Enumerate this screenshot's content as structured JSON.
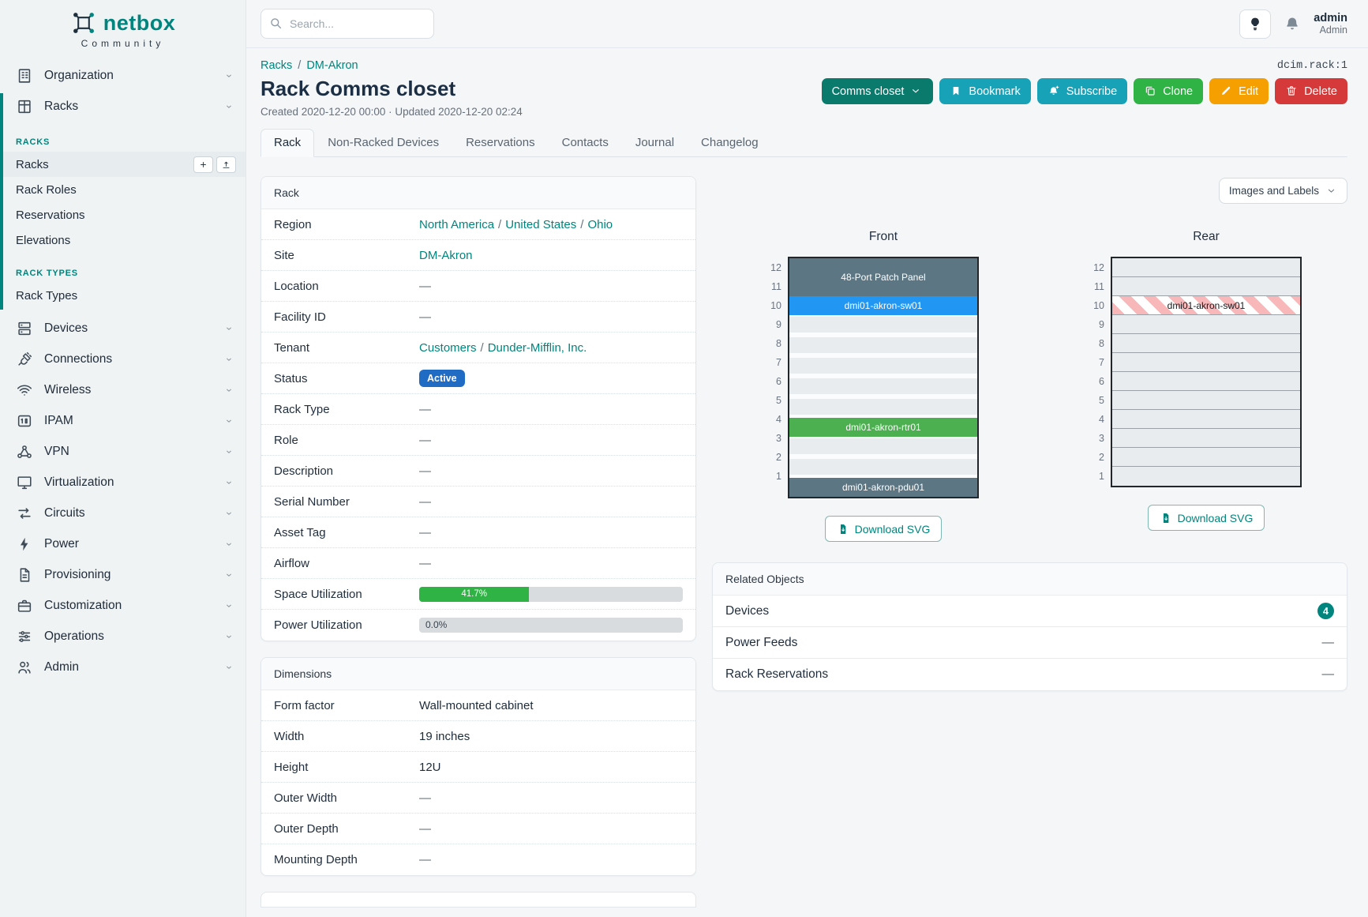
{
  "brand": {
    "name": "netbox",
    "tagline": "Community"
  },
  "topbar": {
    "search_placeholder": "Search...",
    "user_name": "admin",
    "user_role": "Admin"
  },
  "sidebar": {
    "items": [
      {
        "type": "menu",
        "label": "Organization",
        "icon": "building-icon"
      },
      {
        "type": "menu",
        "label": "Racks",
        "icon": "rack-icon",
        "expanded": true
      },
      {
        "type": "section",
        "label": "RACKS"
      },
      {
        "type": "sub",
        "label": "Racks",
        "active": true,
        "actions": [
          {
            "name": "add-rack-button",
            "icon": "plus-icon"
          },
          {
            "name": "import-racks-button",
            "icon": "upload-icon"
          }
        ]
      },
      {
        "type": "sub",
        "label": "Rack Roles"
      },
      {
        "type": "sub",
        "label": "Reservations"
      },
      {
        "type": "sub",
        "label": "Elevations"
      },
      {
        "type": "section",
        "label": "RACK TYPES"
      },
      {
        "type": "sub",
        "label": "Rack Types"
      },
      {
        "type": "menu",
        "label": "Devices",
        "icon": "devices-icon"
      },
      {
        "type": "menu",
        "label": "Connections",
        "icon": "plug-icon"
      },
      {
        "type": "menu",
        "label": "Wireless",
        "icon": "wifi-icon"
      },
      {
        "type": "menu",
        "label": "IPAM",
        "icon": "ipam-icon"
      },
      {
        "type": "menu",
        "label": "VPN",
        "icon": "network-icon"
      },
      {
        "type": "menu",
        "label": "Virtualization",
        "icon": "monitor-icon"
      },
      {
        "type": "menu",
        "label": "Circuits",
        "icon": "transfer-icon"
      },
      {
        "type": "menu",
        "label": "Power",
        "icon": "bolt-icon"
      },
      {
        "type": "menu",
        "label": "Provisioning",
        "icon": "file-icon"
      },
      {
        "type": "menu",
        "label": "Customization",
        "icon": "briefcase-icon"
      },
      {
        "type": "menu",
        "label": "Operations",
        "icon": "adjustments-icon"
      },
      {
        "type": "menu",
        "label": "Admin",
        "icon": "users-icon"
      }
    ]
  },
  "breadcrumb": {
    "items": [
      "Racks",
      "DM-Akron"
    ],
    "separator": "/"
  },
  "object_id": "dcim.rack:1",
  "header": {
    "title": "Rack Comms closet",
    "meta": "Created 2020-12-20 00:00 · Updated 2020-12-20 02:24",
    "buttons": [
      {
        "label": "Comms closet",
        "icon": "chevron-down-icon",
        "icon_after": true,
        "bg": "#0a7a6c"
      },
      {
        "label": "Bookmark",
        "icon": "bookmark-icon",
        "bg": "#17a2b8"
      },
      {
        "label": "Subscribe",
        "icon": "bell-plus-icon",
        "bg": "#17a2b8"
      },
      {
        "label": "Clone",
        "icon": "copy-icon",
        "bg": "#2fb344"
      },
      {
        "label": "Edit",
        "icon": "pencil-icon",
        "bg": "#f59f00"
      },
      {
        "label": "Delete",
        "icon": "trash-icon",
        "bg": "#d63939"
      }
    ]
  },
  "tabs": {
    "active": "Rack",
    "items": [
      "Rack",
      "Non-Racked Devices",
      "Reservations",
      "Contacts",
      "Journal",
      "Changelog"
    ]
  },
  "rack_panel": {
    "title": "Rack",
    "rows": [
      {
        "label": "Region",
        "type": "links",
        "links": [
          "North America",
          "United States",
          "Ohio"
        ]
      },
      {
        "label": "Site",
        "type": "links",
        "links": [
          "DM-Akron"
        ]
      },
      {
        "label": "Location",
        "type": "text",
        "value": "—"
      },
      {
        "label": "Facility ID",
        "type": "text",
        "value": "—"
      },
      {
        "label": "Tenant",
        "type": "links",
        "links": [
          "Customers",
          "Dunder-Mifflin, Inc."
        ]
      },
      {
        "label": "Status",
        "type": "badge",
        "value": "Active",
        "color": "#206bc4"
      },
      {
        "label": "Rack Type",
        "type": "text",
        "value": "—"
      },
      {
        "label": "Role",
        "type": "text",
        "value": "—"
      },
      {
        "label": "Description",
        "type": "text",
        "value": "—"
      },
      {
        "label": "Serial Number",
        "type": "text",
        "value": "—"
      },
      {
        "label": "Asset Tag",
        "type": "text",
        "value": "—"
      },
      {
        "label": "Airflow",
        "type": "text",
        "value": "—"
      },
      {
        "label": "Space Utilization",
        "type": "progress",
        "percent": 41.7,
        "display": "41.7%"
      },
      {
        "label": "Power Utilization",
        "type": "progress",
        "percent": 0.0,
        "display": "0.0%"
      }
    ]
  },
  "dimensions_panel": {
    "title": "Dimensions",
    "rows": [
      {
        "label": "Form factor",
        "value": "Wall-mounted cabinet"
      },
      {
        "label": "Width",
        "value": "19 inches"
      },
      {
        "label": "Height",
        "value": "12U"
      },
      {
        "label": "Outer Width",
        "value": "—"
      },
      {
        "label": "Outer Depth",
        "value": "—"
      },
      {
        "label": "Mounting Depth",
        "value": "—"
      }
    ]
  },
  "elevations": {
    "view_selector": "Images and Labels",
    "download_label": "Download SVG",
    "units": [
      12,
      11,
      10,
      9,
      8,
      7,
      6,
      5,
      4,
      3,
      2,
      1
    ],
    "front": {
      "title": "Front",
      "slots": [
        {
          "unit": 12,
          "span": 2,
          "type": "device",
          "label": "48-Port Patch Panel",
          "color": "#5d7683",
          "text_color": "#ffffff"
        },
        {
          "unit": 10,
          "span": 1,
          "type": "device",
          "label": "dmi01-akron-sw01",
          "color": "#2196f3",
          "text_color": "#ffffff"
        },
        {
          "unit": 9,
          "span": 5,
          "type": "empty"
        },
        {
          "unit": 4,
          "span": 1,
          "type": "device",
          "label": "dmi01-akron-rtr01",
          "color": "#4caf50",
          "text_color": "#ffffff"
        },
        {
          "unit": 3,
          "span": 2,
          "type": "empty"
        },
        {
          "unit": 1,
          "span": 1,
          "type": "device",
          "label": "dmi01-akron-pdu01",
          "color": "#5d7683",
          "text_color": "#ffffff"
        }
      ]
    },
    "rear": {
      "title": "Rear",
      "slots": [
        {
          "unit": 12,
          "span": 2,
          "type": "empty"
        },
        {
          "unit": 10,
          "span": 1,
          "type": "striped",
          "label": "dmi01-akron-sw01",
          "text_color": "#151a1e"
        },
        {
          "unit": 9,
          "span": 9,
          "type": "empty"
        }
      ]
    }
  },
  "related_objects": {
    "title": "Related Objects",
    "rows": [
      {
        "label": "Devices",
        "count": "4"
      },
      {
        "label": "Power Feeds",
        "value": "—"
      },
      {
        "label": "Rack Reservations",
        "value": "—"
      }
    ]
  }
}
